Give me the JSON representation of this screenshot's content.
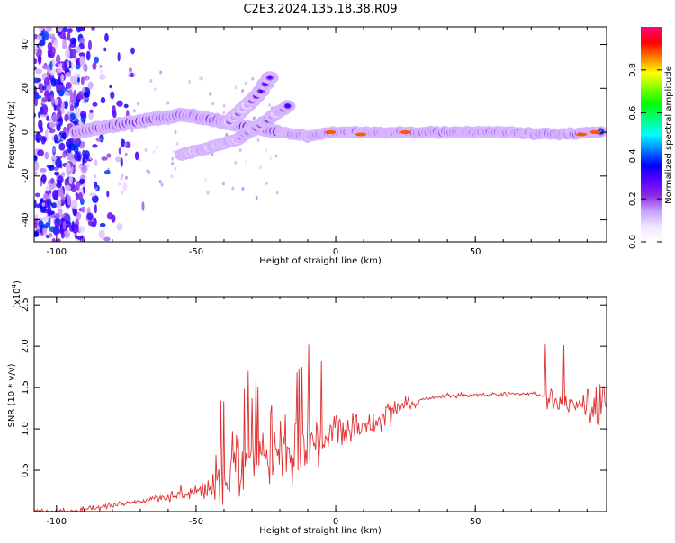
{
  "title": "C2E3.2024.135.18.38.R09",
  "chart_data": [
    {
      "type": "heatmap",
      "xlabel": "Height of straight line (km)",
      "ylabel": "Frequency (Hz)",
      "xlim": [
        -108,
        97
      ],
      "ylim": [
        -50,
        48
      ],
      "xticks": [
        -100,
        -50,
        0,
        50
      ],
      "yticks": [
        -40,
        -20,
        0,
        20,
        40
      ],
      "colorbar": {
        "label": "Normalized spectral amplitude",
        "range": [
          0,
          1
        ],
        "ticks": [
          "0.0",
          "0.2",
          "0.4",
          "0.6",
          "0.8"
        ],
        "tick_values": [
          0.0,
          0.2,
          0.4,
          0.6,
          0.8
        ],
        "colormap": "#ffffff,#f0e6ff,#c8a0ff,#8a2be2,#5a00ff,#0000ff,#0080ff,#00ffff,#00ff80,#00ff00,#80ff00,#ffff00,#ff8000,#ff0000,#ff0080"
      },
      "features": [
        {
          "name": "main band",
          "points": [
            [
              -93,
              0
            ],
            [
              -85,
              2
            ],
            [
              -75,
              4
            ],
            [
              -65,
              6
            ],
            [
              -55,
              8
            ],
            [
              -45,
              6
            ],
            [
              -38,
              4
            ],
            [
              -30,
              2
            ],
            [
              -20,
              0
            ],
            [
              -10,
              -2
            ],
            [
              0,
              0
            ],
            [
              20,
              0
            ],
            [
              40,
              0
            ],
            [
              60,
              0
            ],
            [
              80,
              -1
            ],
            [
              95,
              0
            ]
          ]
        },
        {
          "name": "upper branch",
          "points": [
            [
              -38,
              5
            ],
            [
              -32,
              12
            ],
            [
              -26,
              20
            ],
            [
              -22,
              28
            ]
          ]
        },
        {
          "name": "lower branch",
          "points": [
            [
              -55,
              -10
            ],
            [
              -45,
              -7
            ],
            [
              -35,
              -3
            ],
            [
              -25,
              5
            ],
            [
              -17,
              12
            ]
          ]
        }
      ]
    },
    {
      "type": "line",
      "xlabel": "Height of straight line (km)",
      "ylabel": "SNR (10 * v/v)",
      "multiplier": "(x10",
      "multiplier_exponent": "4",
      "multiplier_close": ")",
      "xlim": [
        -108,
        97
      ],
      "ylim": [
        0,
        2.6
      ],
      "xticks": [
        -100,
        -50,
        0,
        50
      ],
      "yticks": [
        0.5,
        1.0,
        1.5,
        2.0,
        2.5
      ],
      "color": "#e03030",
      "envelope": [
        [
          -108,
          0.0
        ],
        [
          -95,
          0.0
        ],
        [
          -85,
          0.05
        ],
        [
          -75,
          0.1
        ],
        [
          -65,
          0.15
        ],
        [
          -55,
          0.2
        ],
        [
          -45,
          0.3
        ],
        [
          -40,
          0.4
        ],
        [
          -35,
          0.5
        ],
        [
          -30,
          0.6
        ],
        [
          -25,
          0.65
        ],
        [
          -20,
          0.8
        ],
        [
          -15,
          0.75
        ],
        [
          -10,
          0.75
        ],
        [
          -5,
          0.85
        ],
        [
          0,
          0.95
        ],
        [
          10,
          1.05
        ],
        [
          15,
          1.1
        ],
        [
          20,
          1.25
        ],
        [
          25,
          1.3
        ],
        [
          30,
          1.35
        ],
        [
          40,
          1.4
        ],
        [
          50,
          1.41
        ],
        [
          60,
          1.42
        ],
        [
          70,
          1.43
        ],
        [
          75,
          1.4
        ],
        [
          80,
          1.35
        ],
        [
          85,
          1.3
        ],
        [
          90,
          1.25
        ],
        [
          95,
          1.2
        ],
        [
          97,
          1.3
        ]
      ]
    }
  ]
}
